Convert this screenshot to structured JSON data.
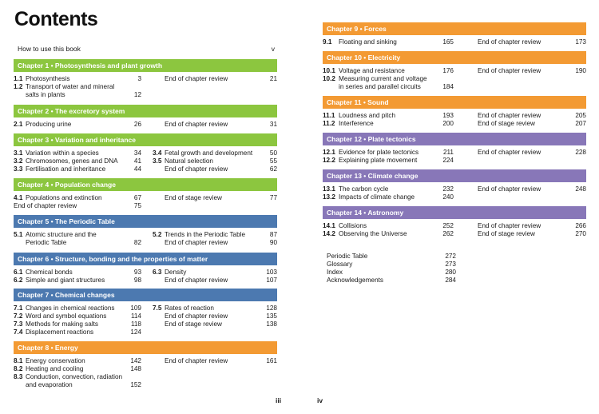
{
  "title": "Contents",
  "how_to_use": {
    "label": "How to use this book",
    "page": "v"
  },
  "colors": {
    "green": "#8cc63f",
    "blue": "#4c79b0",
    "orange": "#f39a33",
    "purple": "#8877b8"
  },
  "chapters_left": [
    {
      "title": "Chapter 1 • Photosynthesis and plant growth",
      "left": [
        {
          "num": "1.1",
          "text": "Photosynthesis",
          "page": "3"
        },
        {
          "num": "1.2",
          "text": "Transport of water and mineral",
          "text2": "salts in plants",
          "page": "12"
        }
      ],
      "right": [
        {
          "num": "",
          "text": "End of chapter review",
          "page": "21"
        }
      ]
    },
    {
      "title": "Chapter 2 • The excretory system",
      "left": [
        {
          "num": "2.1",
          "text": "Producing urine",
          "page": "26"
        }
      ],
      "right": [
        {
          "num": "",
          "text": "End of chapter review",
          "page": "31"
        }
      ]
    },
    {
      "title": "Chapter 3 • Variation and inheritance",
      "left": [
        {
          "num": "3.1",
          "text": "Variation within a species",
          "page": "34"
        },
        {
          "num": "3.2",
          "text": "Chromosomes, genes and DNA",
          "page": "41"
        },
        {
          "num": "3.3",
          "text": "Fertilisation and inheritance",
          "page": "44"
        }
      ],
      "right": [
        {
          "num": "3.4",
          "text": "Fetal growth and development",
          "page": "50"
        },
        {
          "num": "3.5",
          "text": "Natural selection",
          "page": "55"
        },
        {
          "num": "",
          "text": "End of chapter review",
          "page": "62"
        }
      ]
    },
    {
      "title": "Chapter 4 • Population change",
      "left": [
        {
          "num": "4.1",
          "text": "Populations and extinction",
          "page": "67"
        },
        {
          "num": "",
          "text": "End of chapter review",
          "page": "75",
          "flush": true
        }
      ],
      "right": [
        {
          "num": "",
          "text": "End of stage review",
          "page": "77"
        }
      ]
    },
    {
      "title": "Chapter 5 • The Periodic Table",
      "left": [
        {
          "num": "5.1",
          "text": "Atomic structure and the",
          "text2": "Periodic Table",
          "page": "82"
        }
      ],
      "right": [
        {
          "num": "5.2",
          "text": "Trends in the Periodic Table",
          "page": "87"
        },
        {
          "num": "",
          "text": "End of chapter review",
          "page": "90"
        }
      ]
    },
    {
      "title": "Chapter 6 • Structure, bonding and the properties of matter",
      "left": [
        {
          "num": "6.1",
          "text": "Chemical bonds",
          "page": "93"
        },
        {
          "num": "6.2",
          "text": "Simple and giant structures",
          "page": "98"
        }
      ],
      "right": [
        {
          "num": "6.3",
          "text": "Density",
          "page": "103"
        },
        {
          "num": "",
          "text": "End of chapter review",
          "page": "107"
        }
      ]
    },
    {
      "title": "Chapter 7 • Chemical changes",
      "left": [
        {
          "num": "7.1",
          "text": "Changes in chemical reactions",
          "page": "109"
        },
        {
          "num": "7.2",
          "text": "Word and symbol equations",
          "page": "114"
        },
        {
          "num": "7.3",
          "text": "Methods for making salts",
          "page": "118"
        },
        {
          "num": "7.4",
          "text": "Displacement reactions",
          "page": "124"
        }
      ],
      "right": [
        {
          "num": "7.5",
          "text": "Rates of reaction",
          "page": "128"
        },
        {
          "num": "",
          "text": "End of chapter review",
          "page": "135"
        },
        {
          "num": "",
          "text": "End of stage review",
          "page": "138"
        }
      ]
    },
    {
      "title": "Chapter 8 • Energy",
      "left": [
        {
          "num": "8.1",
          "text": "Energy conservation",
          "page": "142"
        },
        {
          "num": "8.2",
          "text": "Heating and cooling",
          "page": "148"
        },
        {
          "num": "8.3",
          "text": "Conduction, convection, radiation",
          "text2": "and evaporation",
          "page": "152"
        }
      ],
      "right": [
        {
          "num": "",
          "text": "End of chapter review",
          "page": "161"
        }
      ]
    }
  ],
  "chapters_right": [
    {
      "title": "Chapter 9 • Forces",
      "left": [
        {
          "num": "9.1",
          "text": "Floating and sinking",
          "page": "165"
        }
      ],
      "right": [
        {
          "num": "",
          "text": "End of chapter review",
          "page": "173"
        }
      ]
    },
    {
      "title": "Chapter 10 • Electricity",
      "left": [
        {
          "num": "10.1",
          "text": "Voltage and resistance",
          "page": "176"
        },
        {
          "num": "10.2",
          "text": "Measuring current and voltage",
          "text2": "in series and parallel circuits",
          "page": "184"
        }
      ],
      "right": [
        {
          "num": "",
          "text": "End of chapter review",
          "page": "190"
        }
      ]
    },
    {
      "title": "Chapter 11 • Sound",
      "left": [
        {
          "num": "11.1",
          "text": "Loudness and pitch",
          "page": "193"
        },
        {
          "num": "11.2",
          "text": "Interference",
          "page": "200"
        }
      ],
      "right": [
        {
          "num": "",
          "text": "End of chapter review",
          "page": "205"
        },
        {
          "num": "",
          "text": "End of stage review",
          "page": "207"
        }
      ]
    },
    {
      "title": "Chapter 12 • Plate tectonics",
      "left": [
        {
          "num": "12.1",
          "text": "Evidence for plate tectonics",
          "page": "211"
        },
        {
          "num": "12.2",
          "text": "Explaining plate movement",
          "page": "224"
        }
      ],
      "right": [
        {
          "num": "",
          "text": "End of chapter review",
          "page": "228"
        }
      ]
    },
    {
      "title": "Chapter 13 •  Climate change",
      "left": [
        {
          "num": "13.1",
          "text": "The carbon cycle",
          "page": "232"
        },
        {
          "num": "13.2",
          "text": "Impacts of climate change",
          "page": "240"
        }
      ],
      "right": [
        {
          "num": "",
          "text": "End of chapter review",
          "page": "248"
        }
      ]
    },
    {
      "title": "Chapter 14 •  Astronomy",
      "left": [
        {
          "num": "14.1",
          "text": "Collisions",
          "page": "252"
        },
        {
          "num": "14.2",
          "text": "Observing the Universe",
          "page": "262"
        }
      ],
      "right": [
        {
          "num": "",
          "text": "End of chapter review",
          "page": "266"
        },
        {
          "num": "",
          "text": "End of stage review",
          "page": "270"
        }
      ]
    }
  ],
  "back_matter": [
    {
      "label": "Periodic Table",
      "page": "272"
    },
    {
      "label": "Glossary",
      "page": "273"
    },
    {
      "label": "Index",
      "page": "280"
    },
    {
      "label": "Acknowledgements",
      "page": "284"
    }
  ],
  "page_numbers": {
    "left": "iii",
    "right": "iv"
  }
}
